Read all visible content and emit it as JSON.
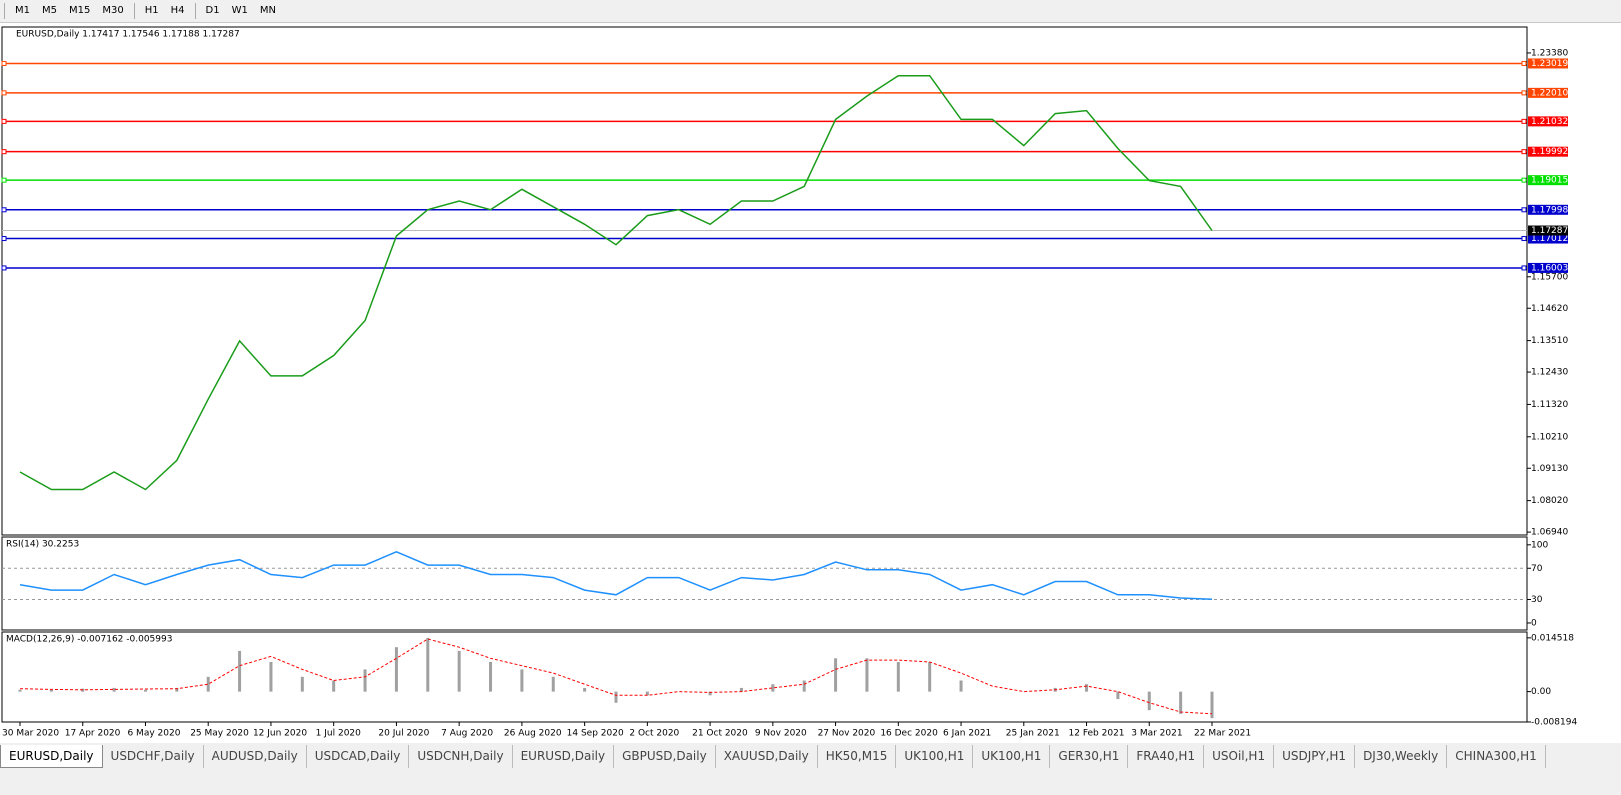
{
  "toolbar": {
    "timeframes": [
      "M1",
      "M5",
      "M15",
      "M30",
      "H1",
      "H4",
      "D1",
      "W1",
      "MN"
    ]
  },
  "chart_data": [
    {
      "type": "line",
      "title": "EURUSD,Daily  1.17417 1.17546 1.17188 1.17287",
      "categories": [
        "30 Mar 2020",
        null,
        "17 Apr 2020",
        null,
        "6 May 2020",
        null,
        "25 May 2020",
        null,
        "12 Jun 2020",
        null,
        "1 Jul 2020",
        null,
        "20 Jul 2020",
        null,
        "7 Aug 2020",
        null,
        "26 Aug 2020",
        null,
        "14 Sep 2020",
        null,
        "2 Oct 2020",
        null,
        "21 Oct 2020",
        null,
        "9 Nov 2020",
        null,
        "27 Nov 2020",
        null,
        "16 Dec 2020",
        null,
        "6 Jan 2021",
        null,
        "25 Jan 2021",
        null,
        "12 Feb 2021",
        null,
        "3 Mar 2021",
        null,
        "22 Mar 2021"
      ],
      "series": [
        {
          "color": "#1a9c1a",
          "values": [
            1.09,
            1.084,
            1.084,
            1.09,
            1.084,
            1.094,
            1.115,
            1.135,
            1.123,
            1.123,
            1.13,
            1.142,
            1.171,
            1.18,
            1.183,
            1.18,
            1.187,
            1.181,
            1.175,
            1.168,
            1.178,
            1.18,
            1.175,
            1.183,
            1.183,
            1.188,
            1.211,
            1.219,
            1.226,
            1.226,
            1.211,
            1.211,
            1.202,
            1.213,
            1.214,
            1.201,
            1.19,
            1.188,
            1.17287
          ]
        }
      ],
      "ylim": [
        1.0684,
        1.2427
      ],
      "yticks": [
        {
          "value": 1.2338,
          "label": "1.23380"
        },
        {
          "value": 1.157,
          "label": "1.15700"
        },
        {
          "value": 1.1462,
          "label": "1.14620"
        },
        {
          "value": 1.1351,
          "label": "1.13510"
        },
        {
          "value": 1.1243,
          "label": "1.12430"
        },
        {
          "value": 1.1132,
          "label": "1.11320"
        },
        {
          "value": 1.1021,
          "label": "1.10210"
        },
        {
          "value": 1.0913,
          "label": "1.09130"
        },
        {
          "value": 1.0802,
          "label": "1.08020"
        },
        {
          "value": 1.0694,
          "label": "1.06940"
        }
      ],
      "levels": [
        {
          "value": 1.23019,
          "color": "#ff4500"
        },
        {
          "value": 1.2201,
          "label": "1.22010",
          "color": "#ff4500"
        },
        {
          "value": 1.21032,
          "color": "#ff0000"
        },
        {
          "value": 1.19992,
          "color": "#ff0000"
        },
        {
          "value": 1.19015,
          "color": "#00e000"
        },
        {
          "value": 1.17998,
          "color": "#0000cd"
        },
        {
          "value": 1.17012,
          "color": "#0000cd"
        },
        {
          "value": 1.16003,
          "color": "#0000cd"
        }
      ],
      "current": 1.17287
    },
    {
      "type": "line",
      "title": "RSI(14) 30.2253",
      "series": [
        {
          "color": "#1e90ff",
          "values": [
            49,
            42,
            42,
            62,
            49,
            62,
            74,
            81,
            62,
            58,
            74,
            74,
            91,
            74,
            74,
            62,
            62,
            58,
            42,
            36,
            58,
            58,
            42,
            58,
            55,
            62,
            78,
            68,
            68,
            62,
            42,
            49,
            36,
            53,
            53,
            36,
            36,
            32,
            30.2253
          ]
        }
      ],
      "ylim": [
        -9,
        110
      ],
      "yticks": [
        100,
        70,
        30,
        0
      ],
      "levels": [
        70,
        30
      ]
    },
    {
      "type": "macd",
      "title": "MACD(12,26,9) -0.007162 -0.005993",
      "series": [
        {
          "color": "#a0a0a0",
          "values": [
            0.0005,
            0.0005,
            0.0008,
            0.001,
            0.0005,
            0.001,
            0.004,
            0.011,
            0.008,
            0.004,
            0.003,
            0.006,
            0.012,
            0.0145,
            0.011,
            0.008,
            0.006,
            0.004,
            0.001,
            -0.003,
            -0.001,
            0.0,
            -0.001,
            0.001,
            0.002,
            0.003,
            0.009,
            0.009,
            0.008,
            0.008,
            0.003,
            0.0,
            0.0,
            0.001,
            0.002,
            -0.002,
            -0.005,
            -0.006,
            -0.007162
          ]
        },
        {
          "color": "#ff0000",
          "values": [
            0.0008,
            0.0006,
            0.0005,
            0.0006,
            0.0007,
            0.0008,
            0.002,
            0.007,
            0.0095,
            0.006,
            0.003,
            0.004,
            0.009,
            0.0142,
            0.012,
            0.009,
            0.007,
            0.005,
            0.002,
            -0.001,
            -0.001,
            0.0,
            -0.0002,
            0.0,
            0.001,
            0.002,
            0.006,
            0.0085,
            0.0085,
            0.008,
            0.005,
            0.0015,
            0.0,
            0.0005,
            0.0015,
            0.0,
            -0.003,
            -0.0055,
            -0.005993
          ]
        }
      ],
      "ylim": [
        -0.0082,
        0.0161
      ],
      "yticks": [
        0.014518,
        {
          "value": 0,
          "label": "0.00"
        },
        -0.008194
      ]
    }
  ],
  "tabs": [
    "EURUSD,Daily",
    "USDCHF,Daily",
    "AUDUSD,Daily",
    "USDCAD,Daily",
    "USDCNH,Daily",
    "EURUSD,Daily",
    "GBPUSD,Daily",
    "XAUUSD,Daily",
    "HK50,M15",
    "UK100,H1",
    "UK100,H1",
    "GER30,H1",
    "FRA40,H1",
    "USOil,H1",
    "USDJPY,H1",
    "DJ30,Weekly",
    "CHINA300,H1"
  ],
  "active_tab": 0
}
